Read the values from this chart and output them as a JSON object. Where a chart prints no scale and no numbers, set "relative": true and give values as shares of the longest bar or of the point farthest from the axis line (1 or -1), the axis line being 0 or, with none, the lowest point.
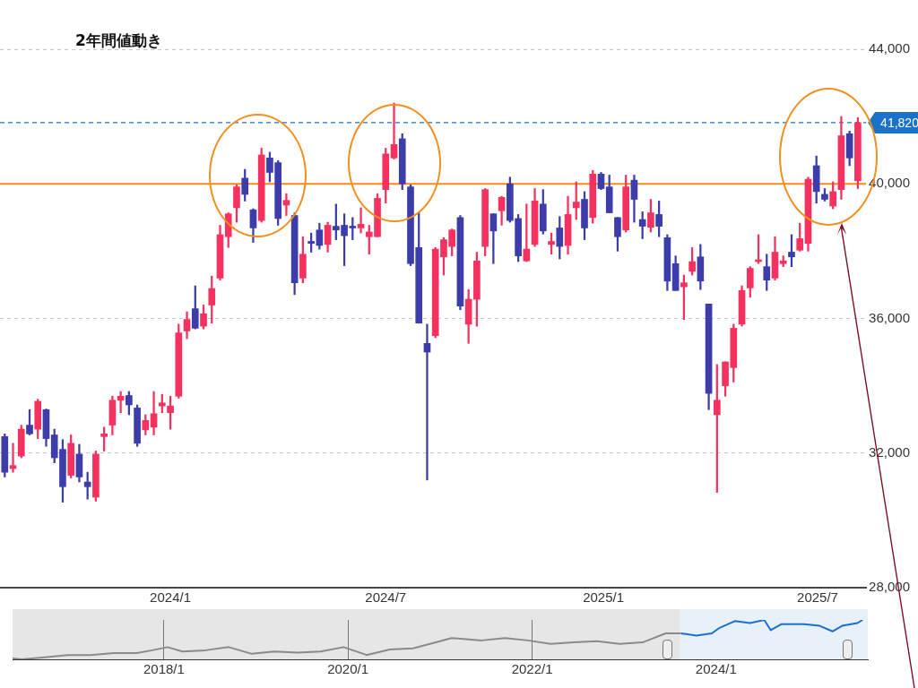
{
  "chart_data": [
    {
      "type": "candlestick",
      "title": "2年間値動き",
      "x": [
        "2023-08-14",
        "2023-08-21",
        "2023-08-28",
        "2023-09-04",
        "2023-09-11",
        "2023-09-18",
        "2023-09-25",
        "2023-10-02",
        "2023-10-09",
        "2023-10-16",
        "2023-10-23",
        "2023-10-30",
        "2023-11-06",
        "2023-11-13",
        "2023-11-20",
        "2023-11-27",
        "2023-12-04",
        "2023-12-11",
        "2023-12-18",
        "2023-12-25",
        "2024-01-01",
        "2024-01-08",
        "2024-01-15",
        "2024-01-22",
        "2024-01-29",
        "2024-02-05",
        "2024-02-12",
        "2024-02-19",
        "2024-02-26",
        "2024-03-04",
        "2024-03-11",
        "2024-03-18",
        "2024-03-25",
        "2024-04-01",
        "2024-04-08",
        "2024-04-15",
        "2024-04-22",
        "2024-04-29",
        "2024-05-06",
        "2024-05-13",
        "2024-05-20",
        "2024-05-27",
        "2024-06-03",
        "2024-06-10",
        "2024-06-17",
        "2024-06-24",
        "2024-07-01",
        "2024-07-08",
        "2024-07-15",
        "2024-07-22",
        "2024-07-29",
        "2024-08-05",
        "2024-08-12",
        "2024-08-19",
        "2024-08-26",
        "2024-09-02",
        "2024-09-09",
        "2024-09-16",
        "2024-09-23",
        "2024-09-30",
        "2024-10-07",
        "2024-10-14",
        "2024-10-21",
        "2024-10-28",
        "2024-11-04",
        "2024-11-11",
        "2024-11-18",
        "2024-11-25",
        "2024-12-02",
        "2024-12-09",
        "2024-12-16",
        "2024-12-23",
        "2024-12-30",
        "2025-01-06",
        "2025-01-13",
        "2025-01-20",
        "2025-01-27",
        "2025-02-03",
        "2025-02-10",
        "2025-02-17",
        "2025-02-24",
        "2025-03-03",
        "2025-03-10",
        "2025-03-17",
        "2025-03-24",
        "2025-03-31",
        "2025-04-07",
        "2025-04-14",
        "2025-04-21",
        "2025-04-28",
        "2025-05-05",
        "2025-05-12",
        "2025-05-19",
        "2025-05-26",
        "2025-06-02",
        "2025-06-09",
        "2025-06-16",
        "2025-06-23",
        "2025-06-30",
        "2025-07-07",
        "2025-07-14",
        "2025-07-21",
        "2025-07-28",
        "2025-08-04"
      ],
      "ohlc": [
        [
          32490,
          32570,
          31290,
          31430
        ],
        [
          31540,
          32290,
          31430,
          31630
        ],
        [
          31910,
          32830,
          31860,
          32710
        ],
        [
          32830,
          33290,
          32540,
          32570
        ],
        [
          32710,
          33600,
          32430,
          33540
        ],
        [
          33290,
          33310,
          32200,
          32430
        ],
        [
          32540,
          32710,
          31710,
          31860
        ],
        [
          32110,
          32400,
          30540,
          31000
        ],
        [
          31340,
          32540,
          31260,
          32290
        ],
        [
          31970,
          32260,
          31140,
          31290
        ],
        [
          31140,
          31430,
          30630,
          31000
        ],
        [
          30690,
          32060,
          30570,
          31970
        ],
        [
          32490,
          32770,
          32060,
          32570
        ],
        [
          32830,
          33690,
          32540,
          33570
        ],
        [
          33570,
          33830,
          33200,
          33690
        ],
        [
          33710,
          33830,
          33140,
          33430
        ],
        [
          33340,
          33430,
          32200,
          32290
        ],
        [
          32690,
          33140,
          32540,
          32970
        ],
        [
          32770,
          33830,
          32540,
          33170
        ],
        [
          33400,
          33740,
          33200,
          33490
        ],
        [
          33200,
          33690,
          32710,
          33400
        ],
        [
          33690,
          35830,
          33630,
          35570
        ],
        [
          35630,
          36200,
          35400,
          35970
        ],
        [
          36290,
          36970,
          35690,
          35710
        ],
        [
          35770,
          36400,
          35690,
          36140
        ],
        [
          36400,
          37260,
          35860,
          36890
        ],
        [
          37200,
          38770,
          37140,
          38490
        ],
        [
          38430,
          39140,
          38110,
          39110
        ],
        [
          39290,
          39970,
          38860,
          39910
        ],
        [
          40170,
          40430,
          39490,
          39690
        ],
        [
          39230,
          39260,
          38260,
          38690
        ],
        [
          38910,
          41060,
          38860,
          40860
        ],
        [
          40770,
          40940,
          40060,
          40340
        ],
        [
          40630,
          40690,
          38770,
          38970
        ],
        [
          39370,
          39710,
          39060,
          39510
        ],
        [
          39060,
          39140,
          36710,
          37060
        ],
        [
          37200,
          38430,
          37060,
          37910
        ],
        [
          38290,
          38540,
          37970,
          38230
        ],
        [
          38630,
          38830,
          38060,
          38170
        ],
        [
          38200,
          38860,
          37970,
          38770
        ],
        [
          38740,
          39400,
          38340,
          38630
        ],
        [
          38770,
          39110,
          37570,
          38460
        ],
        [
          38710,
          39000,
          38340,
          38690
        ],
        [
          38690,
          39290,
          38540,
          38800
        ],
        [
          38430,
          38770,
          37910,
          38570
        ],
        [
          38430,
          39710,
          38430,
          39570
        ],
        [
          39830,
          41060,
          39430,
          40890
        ],
        [
          40770,
          42400,
          40740,
          41170
        ],
        [
          41340,
          41490,
          39830,
          40000
        ],
        [
          39910,
          39970,
          37570,
          37630
        ],
        [
          38110,
          39140,
          35860,
          35860
        ],
        [
          35260,
          35830,
          31200,
          35000
        ],
        [
          35490,
          38110,
          35430,
          38060
        ],
        [
          37830,
          38400,
          37290,
          38340
        ],
        [
          38140,
          38660,
          37860,
          38630
        ],
        [
          39000,
          39060,
          36260,
          36370
        ],
        [
          35830,
          36860,
          35260,
          36570
        ],
        [
          36570,
          37970,
          35770,
          37710
        ],
        [
          38140,
          39860,
          37860,
          39830
        ],
        [
          39110,
          39110,
          37630,
          38600
        ],
        [
          39200,
          39630,
          38770,
          39600
        ],
        [
          40000,
          40200,
          38860,
          38910
        ],
        [
          38970,
          39090,
          37690,
          37860
        ],
        [
          37710,
          39400,
          37690,
          38060
        ],
        [
          38200,
          39860,
          38140,
          39490
        ],
        [
          39400,
          39830,
          38510,
          38600
        ],
        [
          38200,
          38540,
          37910,
          38290
        ],
        [
          38690,
          39030,
          37770,
          38140
        ],
        [
          38170,
          39630,
          37910,
          39090
        ],
        [
          39290,
          40060,
          38940,
          39460
        ],
        [
          39540,
          39770,
          38340,
          38690
        ],
        [
          39000,
          40400,
          38830,
          40290
        ],
        [
          40290,
          40340,
          39830,
          39860
        ],
        [
          39910,
          40260,
          39140,
          39140
        ],
        [
          39000,
          39000,
          38000,
          38430
        ],
        [
          38630,
          40260,
          38570,
          39910
        ],
        [
          40110,
          40260,
          38860,
          39540
        ],
        [
          38940,
          39170,
          38370,
          38740
        ],
        [
          38710,
          39540,
          38570,
          39140
        ],
        [
          39090,
          39490,
          38430,
          38740
        ],
        [
          38400,
          38490,
          36830,
          37110
        ],
        [
          37630,
          37860,
          36830,
          36830
        ],
        [
          36940,
          37290,
          35970,
          37060
        ],
        [
          37400,
          38110,
          37290,
          37690
        ],
        [
          37830,
          38200,
          36860,
          37110
        ],
        [
          36430,
          36430,
          33290,
          33770
        ],
        [
          33140,
          34630,
          30830,
          33570
        ],
        [
          34000,
          34710,
          33690,
          34710
        ],
        [
          34540,
          35830,
          34110,
          35710
        ],
        [
          35830,
          36970,
          35770,
          36830
        ],
        [
          36910,
          37540,
          36630,
          37490
        ],
        [
          37690,
          38490,
          37630,
          37740
        ],
        [
          37540,
          37910,
          36830,
          37140
        ],
        [
          37200,
          38430,
          37140,
          37970
        ],
        [
          37630,
          37860,
          37540,
          37710
        ],
        [
          37970,
          38490,
          37540,
          37830
        ],
        [
          38030,
          38830,
          38000,
          38370
        ],
        [
          38230,
          40200,
          38000,
          40140
        ],
        [
          40540,
          40830,
          39430,
          39770
        ],
        [
          39690,
          39860,
          39490,
          39540
        ],
        [
          39340,
          40060,
          39260,
          39770
        ],
        [
          39830,
          42000,
          39540,
          41430
        ],
        [
          41490,
          41570,
          40540,
          40770
        ],
        [
          40090,
          41970,
          39860,
          41820
        ]
      ],
      "colors": [
        "#3c3caa",
        "#f5325f",
        "#f5325f",
        "#3c3caa",
        "#f5325f",
        "#3c3caa",
        "#3c3caa",
        "#3c3caa",
        "#f5325f",
        "#3c3caa",
        "#3c3caa",
        "#f5325f",
        "#f5325f",
        "#f5325f",
        "#f5325f",
        "#3c3caa",
        "#3c3caa",
        "#f5325f",
        "#f5325f",
        "#f5325f",
        "#f5325f",
        "#f5325f",
        "#f5325f",
        "#3c3caa",
        "#f5325f",
        "#f5325f",
        "#f5325f",
        "#f5325f",
        "#f5325f",
        "#3c3caa",
        "#3c3caa",
        "#f5325f",
        "#3c3caa",
        "#3c3caa",
        "#f5325f",
        "#3c3caa",
        "#f5325f",
        "#3c3caa",
        "#3c3caa",
        "#f5325f",
        "#3c3caa",
        "#3c3caa",
        "#3c3caa",
        "#f5325f",
        "#f5325f",
        "#f5325f",
        "#f5325f",
        "#f5325f",
        "#3c3caa",
        "#3c3caa",
        "#3c3caa",
        "#3c3caa",
        "#f5325f",
        "#f5325f",
        "#f5325f",
        "#3c3caa",
        "#f5325f",
        "#f5325f",
        "#f5325f",
        "#3c3caa",
        "#f5325f",
        "#3c3caa",
        "#3c3caa",
        "#f5325f",
        "#f5325f",
        "#3c3caa",
        "#f5325f",
        "#3c3caa",
        "#f5325f",
        "#f5325f",
        "#3c3caa",
        "#f5325f",
        "#3c3caa",
        "#3c3caa",
        "#3c3caa",
        "#f5325f",
        "#3c3caa",
        "#3c3caa",
        "#f5325f",
        "#3c3caa",
        "#3c3caa",
        "#3c3caa",
        "#f5325f",
        "#f5325f",
        "#3c3caa",
        "#3c3caa",
        "#f5325f",
        "#f5325f",
        "#f5325f",
        "#f5325f",
        "#f5325f",
        "#f5325f",
        "#3c3caa",
        "#f5325f",
        "#f5325f",
        "#3c3caa",
        "#f5325f",
        "#f5325f",
        "#3c3caa",
        "#3c3caa",
        "#f5325f",
        "#f5325f",
        "#3c3caa",
        "#f5325f"
      ],
      "xlim": [
        "2023-08-10",
        "2025-08-11"
      ],
      "xticks": [
        {
          "value": "2024-01-01",
          "label": "2024/1"
        },
        {
          "value": "2024-07-01",
          "label": "2024/7"
        },
        {
          "value": "2025-01-01",
          "label": "2025/1"
        },
        {
          "value": "2025-07-01",
          "label": "2025/7"
        }
      ],
      "ylim": [
        28000,
        44000
      ],
      "yticks": [
        {
          "value": 28000,
          "label": "28,000"
        },
        {
          "value": 32000,
          "label": "32,000"
        },
        {
          "value": 36000,
          "label": "36,000"
        },
        {
          "value": 40000,
          "label": "40,000"
        },
        {
          "value": 44000,
          "label": "44,000"
        }
      ],
      "ref_lines": [
        {
          "axis": "y",
          "value": 41820,
          "label": "41,820",
          "color": "#1a73c8",
          "line_style": "dashed"
        },
        {
          "axis": "y",
          "value": 40000,
          "color": "#f28c1e",
          "line_style": "solid"
        }
      ],
      "grid": "y"
    },
    {
      "type": "line",
      "relative": true,
      "series": [
        {
          "color": "#8a8a8a",
          "x": [
            "2016-05-10",
            "2016-06-15",
            "2016-09-15",
            "2016-12-15",
            "2017-03-15",
            "2017-06-15",
            "2017-09-15",
            "2017-11-15",
            "2018-01-15",
            "2018-03-15",
            "2018-06-15",
            "2018-09-15",
            "2018-12-15",
            "2019-03-15",
            "2019-06-15",
            "2019-09-15",
            "2019-12-15",
            "2020-03-15",
            "2020-06-15",
            "2020-09-15",
            "2020-12-15",
            "2021-02-15",
            "2021-06-15",
            "2021-09-15",
            "2021-12-15",
            "2022-03-15",
            "2022-06-15",
            "2022-09-15",
            "2022-12-15",
            "2023-03-15",
            "2023-06-15",
            "2023-08-14"
          ],
          "values": [
            0.02,
            0,
            0.05,
            0.11,
            0.11,
            0.16,
            0.16,
            0.23,
            0.31,
            0.2,
            0.23,
            0.31,
            0.14,
            0.2,
            0.17,
            0.2,
            0.31,
            0.11,
            0.25,
            0.28,
            0.43,
            0.54,
            0.48,
            0.54,
            0.48,
            0.39,
            0.43,
            0.46,
            0.39,
            0.43,
            0.66,
            0.66
          ]
        },
        {
          "color": "#1a6fd0",
          "x": [
            "2023-08-14",
            "2023-10-15",
            "2023-12-15",
            "2024-01-15",
            "2024-03-15",
            "2024-05-15",
            "2024-07-10",
            "2024-08-05",
            "2024-09-15",
            "2024-12-15",
            "2025-02-15",
            "2025-04-07",
            "2025-05-15",
            "2025-07-15",
            "2025-08-04"
          ],
          "values": [
            0.66,
            0.6,
            0.66,
            0.8,
            0.97,
            0.92,
            1,
            0.74,
            0.89,
            0.89,
            0.85,
            0.71,
            0.85,
            0.92,
            1
          ]
        }
      ],
      "xlim": [
        "2016-05-10",
        "2025-08-25"
      ],
      "xticks": [
        {
          "value": "2018-01-01",
          "label": "2018/1"
        },
        {
          "value": "2020-01-01",
          "label": "2020/1"
        },
        {
          "value": "2022-01-01",
          "label": "2022/1"
        },
        {
          "value": "2024-01-01",
          "label": "2024/1"
        }
      ],
      "bands": [
        {
          "axis": "x",
          "from": "2023-08-10",
          "to": "2025-08-25",
          "color": "#e8f0fa"
        }
      ],
      "grid": "x",
      "tick_labels": "x",
      "marker": "none"
    }
  ]
}
